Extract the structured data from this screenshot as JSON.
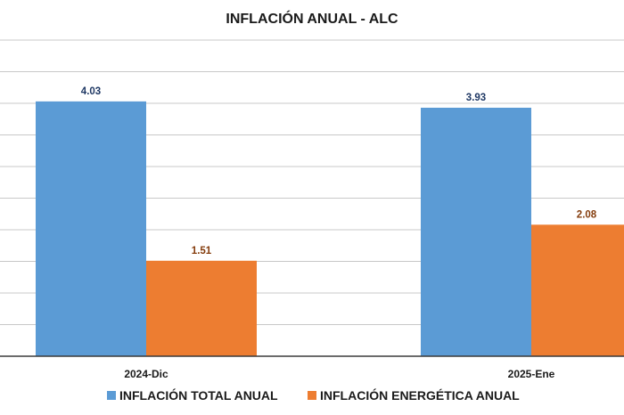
{
  "chart_data": {
    "type": "bar",
    "title": "INFLACIÓN ANUAL - ALC",
    "categories": [
      "2024-Dic",
      "2025-Ene"
    ],
    "series": [
      {
        "name": "INFLACIÓN TOTAL ANUAL",
        "values": [
          4.03,
          3.93
        ],
        "labels": [
          "4.03",
          "3.93"
        ],
        "color": "#5B9BD5",
        "label_color": "#1F3864"
      },
      {
        "name": "INFLACIÓN ENERGÉTICA ANUAL",
        "values": [
          1.51,
          2.08
        ],
        "labels": [
          "1.51",
          "2.08"
        ],
        "color": "#ED7D31",
        "label_color": "#843C0C"
      }
    ],
    "ylim": [
      0,
      5
    ],
    "grid": true,
    "legend_position": "bottom"
  }
}
